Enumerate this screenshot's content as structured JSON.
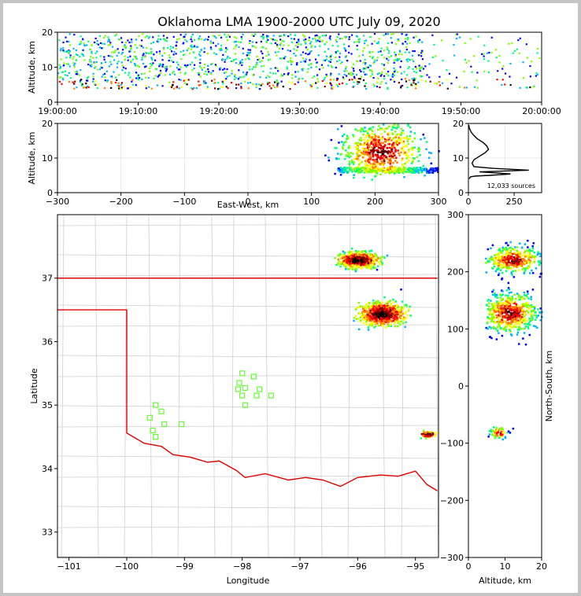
{
  "chart_data": {
    "type": "lma-composite",
    "title": "Oklahoma LMA 1900-2000 UTC July 09, 2020",
    "panels": {
      "time_altitude": {
        "xlabel": "",
        "ylabel": "Altitude, km",
        "xlim": [
          "19:00:00",
          "20:00:00"
        ],
        "ylim": [
          0,
          20
        ],
        "xticks": [
          "19:00:00",
          "19:10:00",
          "19:20:00",
          "19:30:00",
          "19:40:00",
          "19:50:00",
          "20:00:00"
        ],
        "yticks": [
          "0",
          "10",
          "20"
        ]
      },
      "ew_altitude": {
        "xlabel": "East-West, km",
        "ylabel": "Altitude, km",
        "xlim": [
          -300,
          300
        ],
        "ylim": [
          0,
          20
        ],
        "xticks": [
          "−300",
          "−200",
          "−100",
          "0",
          "100",
          "200",
          "300"
        ],
        "yticks": [
          "0",
          "10",
          "20"
        ]
      },
      "histogram": {
        "xlim": [
          0,
          400
        ],
        "ylim": [
          0,
          20
        ],
        "xticks": [
          "0",
          "250"
        ],
        "yticks": [
          "0",
          "10",
          "20"
        ],
        "source_count_label": "12,033 sources",
        "profile": [
          [
            4,
            4
          ],
          [
            12,
            4.6
          ],
          [
            40,
            4.8
          ],
          [
            120,
            5
          ],
          [
            230,
            5.4
          ],
          [
            150,
            5.7
          ],
          [
            60,
            6
          ],
          [
            330,
            6.5
          ],
          [
            140,
            7
          ],
          [
            30,
            7.5
          ],
          [
            20,
            8.5
          ],
          [
            30,
            9.5
          ],
          [
            60,
            10.5
          ],
          [
            90,
            11.5
          ],
          [
            110,
            12.5
          ],
          [
            100,
            13.5
          ],
          [
            80,
            14.5
          ],
          [
            50,
            15.5
          ],
          [
            30,
            16.5
          ],
          [
            15,
            17.5
          ],
          [
            6,
            18.5
          ],
          [
            2,
            19.5
          ]
        ]
      },
      "map": {
        "xlabel": "Longitude",
        "ylabel": "Latitude",
        "xlim": [
          -101.2,
          -94.6
        ],
        "ylim": [
          32.6,
          38
        ],
        "xticks": [
          "−101",
          "−100",
          "−99",
          "−98",
          "−97",
          "−96",
          "−95"
        ],
        "yticks": [
          "33",
          "34",
          "35",
          "36",
          "37"
        ],
        "stations": [
          [
            -99.6,
            34.8
          ],
          [
            -99.5,
            35.0
          ],
          [
            -99.4,
            34.9
          ],
          [
            -99.35,
            34.7
          ],
          [
            -99.55,
            34.6
          ],
          [
            -99.5,
            34.5
          ],
          [
            -99.05,
            34.7
          ],
          [
            -98.0,
            35.5
          ],
          [
            -98.05,
            35.35
          ],
          [
            -98.07,
            35.25
          ],
          [
            -97.95,
            35.27
          ],
          [
            -98.0,
            35.15
          ],
          [
            -97.95,
            35.0
          ],
          [
            -97.8,
            35.45
          ],
          [
            -97.75,
            35.15
          ],
          [
            -97.7,
            35.25
          ],
          [
            -97.5,
            35.15
          ]
        ],
        "clusters": [
          {
            "lon": -96.0,
            "lat": 37.3,
            "sx": 0.3,
            "sy": 0.1,
            "n": 600
          },
          {
            "lon": -95.6,
            "lat": 36.45,
            "sx": 0.35,
            "sy": 0.15,
            "n": 700
          },
          {
            "lon": -94.8,
            "lat": 34.55,
            "sx": 0.15,
            "sy": 0.04,
            "n": 80
          }
        ]
      },
      "ns_altitude": {
        "xlabel": "Altitude, km",
        "ylabel": "North-South, km",
        "xlim": [
          0,
          20
        ],
        "ylim": [
          -300,
          300
        ],
        "xticks": [
          "0",
          "10",
          "20"
        ],
        "yticks": [
          "300",
          "200",
          "100",
          "0",
          "−100",
          "−200",
          "−300"
        ]
      }
    }
  }
}
